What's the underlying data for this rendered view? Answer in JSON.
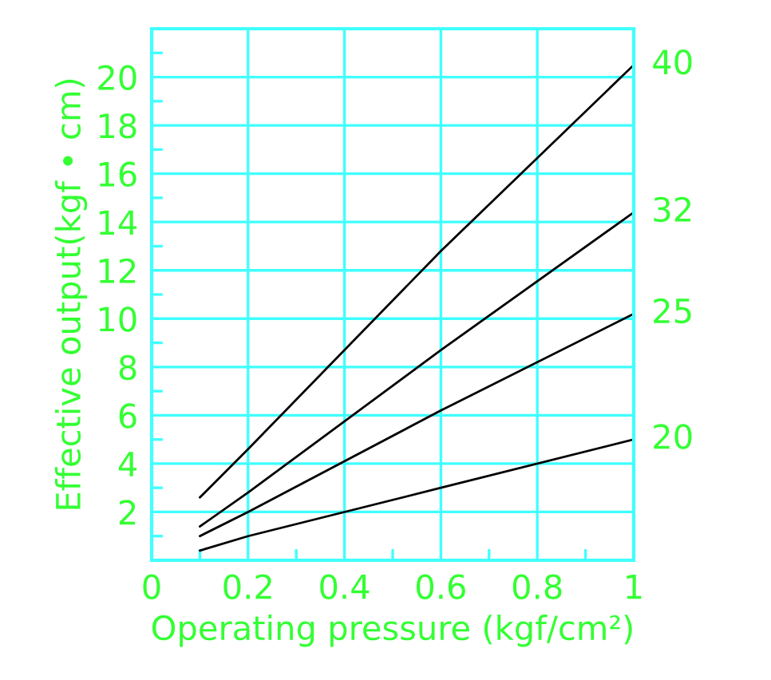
{
  "chart_data": {
    "type": "line",
    "xlabel": "Operating pressure (kgf/cm²)",
    "ylabel": "Effective output(kgf • cm)",
    "series": [
      {
        "name": "40",
        "color": "#000000",
        "x": [
          0.1,
          0.2,
          0.6,
          1
        ],
        "values": [
          2.6,
          4.6,
          12.8,
          20.5
        ]
      },
      {
        "name": "32",
        "color": "#000000",
        "x": [
          0.1,
          0.2,
          0.6,
          1
        ],
        "values": [
          1.4,
          2.8,
          8.7,
          14.4
        ]
      },
      {
        "name": "25",
        "color": "#000000",
        "x": [
          0.1,
          0.2,
          0.6,
          1
        ],
        "values": [
          1.0,
          2.0,
          6.2,
          10.2
        ]
      },
      {
        "name": "20",
        "color": "#000000",
        "x": [
          0.1,
          0.2,
          0.6,
          1
        ],
        "values": [
          0.4,
          1.0,
          3.0,
          5.0
        ]
      }
    ],
    "xlim": [
      0,
      1
    ],
    "ylim": [
      0,
      22
    ],
    "xticks": [
      0,
      0.2,
      0.4,
      0.6,
      0.8,
      1,
      {
        "value": 0.1,
        "label": null
      },
      {
        "value": 0.3,
        "label": null
      },
      {
        "value": 0.5,
        "label": null
      },
      {
        "value": 0.7,
        "label": null
      },
      {
        "value": 0.9,
        "label": null
      }
    ],
    "yticks": [
      2,
      4,
      6,
      8,
      10,
      12,
      14,
      16,
      18,
      20,
      {
        "value": 1,
        "label": null
      },
      {
        "value": 3,
        "label": null
      },
      {
        "value": 5,
        "label": null
      },
      {
        "value": 7,
        "label": null
      },
      {
        "value": 9,
        "label": null
      },
      {
        "value": 11,
        "label": null
      },
      {
        "value": 13,
        "label": null
      },
      {
        "value": 15,
        "label": null
      },
      {
        "value": 17,
        "label": null
      },
      {
        "value": 19,
        "label": null
      },
      {
        "value": 21,
        "label": null
      }
    ],
    "grid": true,
    "legend": false,
    "marker": "none",
    "line_style": "solid"
  }
}
